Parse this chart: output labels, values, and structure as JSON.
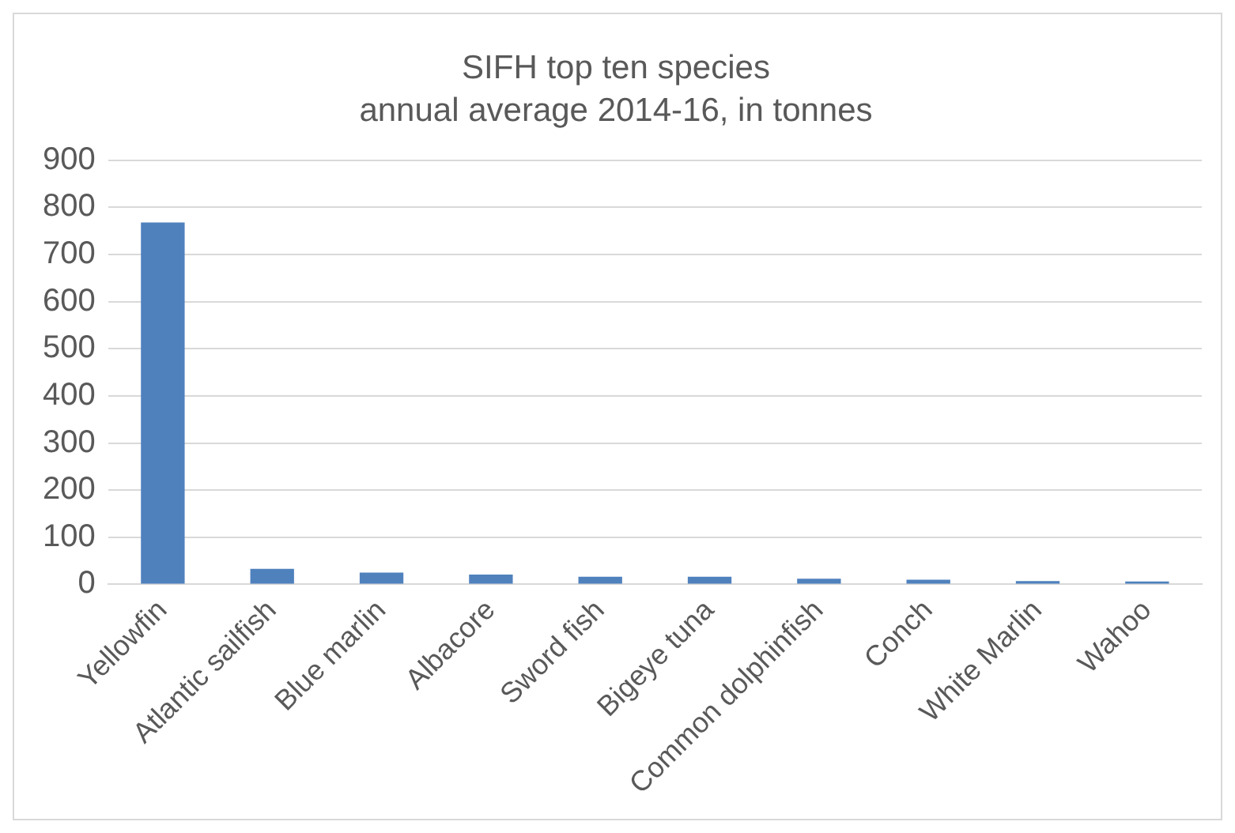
{
  "chart_data": {
    "type": "bar",
    "title": "SIFH top ten species",
    "subtitle": "annual average 2014-16, in tonnes",
    "categories": [
      "Yellowfin",
      "Atlantic sailfish",
      "Blue marlin",
      "Albacore",
      "Sword fish",
      "Bigeye tuna",
      "Common dolphinfish",
      "Conch",
      "White Marlin",
      "Wahoo"
    ],
    "values": [
      768,
      33,
      25,
      21,
      16,
      16,
      12,
      10,
      7,
      6
    ],
    "color": "#4f81bd",
    "ylim": [
      0,
      900
    ],
    "yticks": [
      0,
      100,
      200,
      300,
      400,
      500,
      600,
      700,
      800,
      900
    ],
    "grid": "y",
    "legend": false
  }
}
